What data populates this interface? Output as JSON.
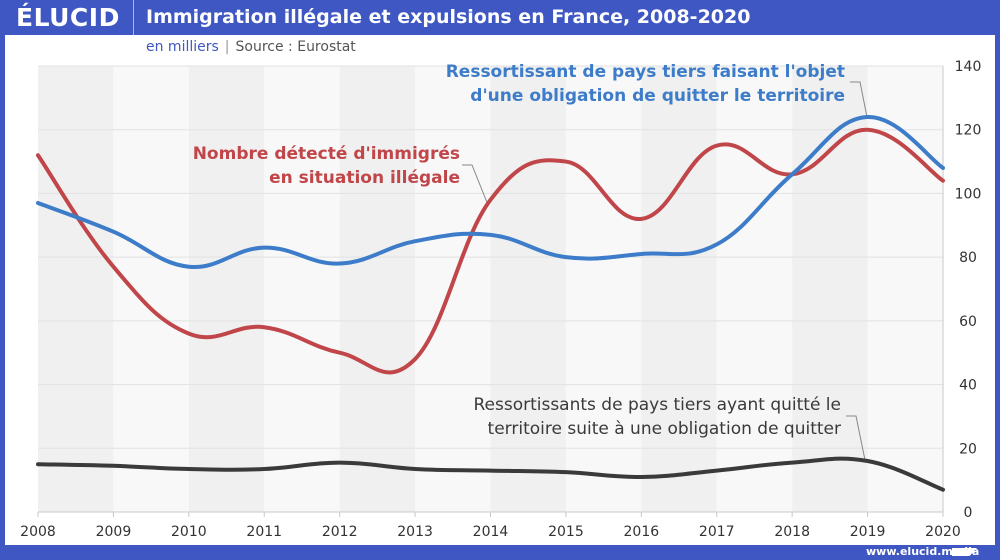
{
  "header": {
    "logo": "ÉLUCID",
    "title": "Immigration illégale et expulsions en France, 2008-2020"
  },
  "subtitle": {
    "unit": "en milliers",
    "separator": "|",
    "source": "Source : Eurostat"
  },
  "footer": {
    "url": "www.elucid.media"
  },
  "chart_data": {
    "type": "line",
    "title": "Immigration illégale et expulsions en France, 2008-2020",
    "subtitle": "en milliers | Source : Eurostat",
    "xlabel": "",
    "ylabel": "",
    "x": [
      2008,
      2009,
      2010,
      2011,
      2012,
      2013,
      2014,
      2015,
      2016,
      2017,
      2018,
      2019,
      2020
    ],
    "x_tick_labels": [
      "2008",
      "2009",
      "2010",
      "2011",
      "2012",
      "2013",
      "2014",
      "2015",
      "2016",
      "2017",
      "2018",
      "2019",
      "2020"
    ],
    "ylim": [
      0,
      140
    ],
    "y_ticks": [
      0,
      20,
      40,
      60,
      80,
      100,
      120,
      140
    ],
    "y_axis_side": "right",
    "grid": true,
    "legend": "inline annotations",
    "series": [
      {
        "name": "Nombre détecté d'immigrés en situation illégale",
        "label_lines": [
          "Nombre détecté d'immigrés",
          "en situation illégale"
        ],
        "color": "#c0464a",
        "values": [
          112,
          77,
          56,
          58,
          50,
          48,
          98,
          110,
          92,
          115,
          106,
          120,
          104
        ]
      },
      {
        "name": "Ressortissant de pays tiers faisant l'objet d'une obligation de quitter le territoire",
        "label_lines": [
          "Ressortissant de pays tiers faisant l'objet",
          "d'une obligation de quitter le territoire"
        ],
        "color": "#3d7cc9",
        "values": [
          97,
          88,
          77,
          83,
          78,
          85,
          87,
          80,
          81,
          84,
          106,
          124,
          108
        ]
      },
      {
        "name": "Ressortissants de pays tiers ayant quitté le territoire suite à une obligation de quitter",
        "label_lines": [
          "Ressortissants de pays tiers ayant quitté le",
          "territoire suite à une obligation de quitter"
        ],
        "color": "#3a3a3a",
        "values": [
          15,
          14.5,
          13.5,
          13.5,
          15.5,
          13.5,
          13,
          12.5,
          11,
          13,
          15.5,
          16,
          7
        ]
      }
    ]
  }
}
